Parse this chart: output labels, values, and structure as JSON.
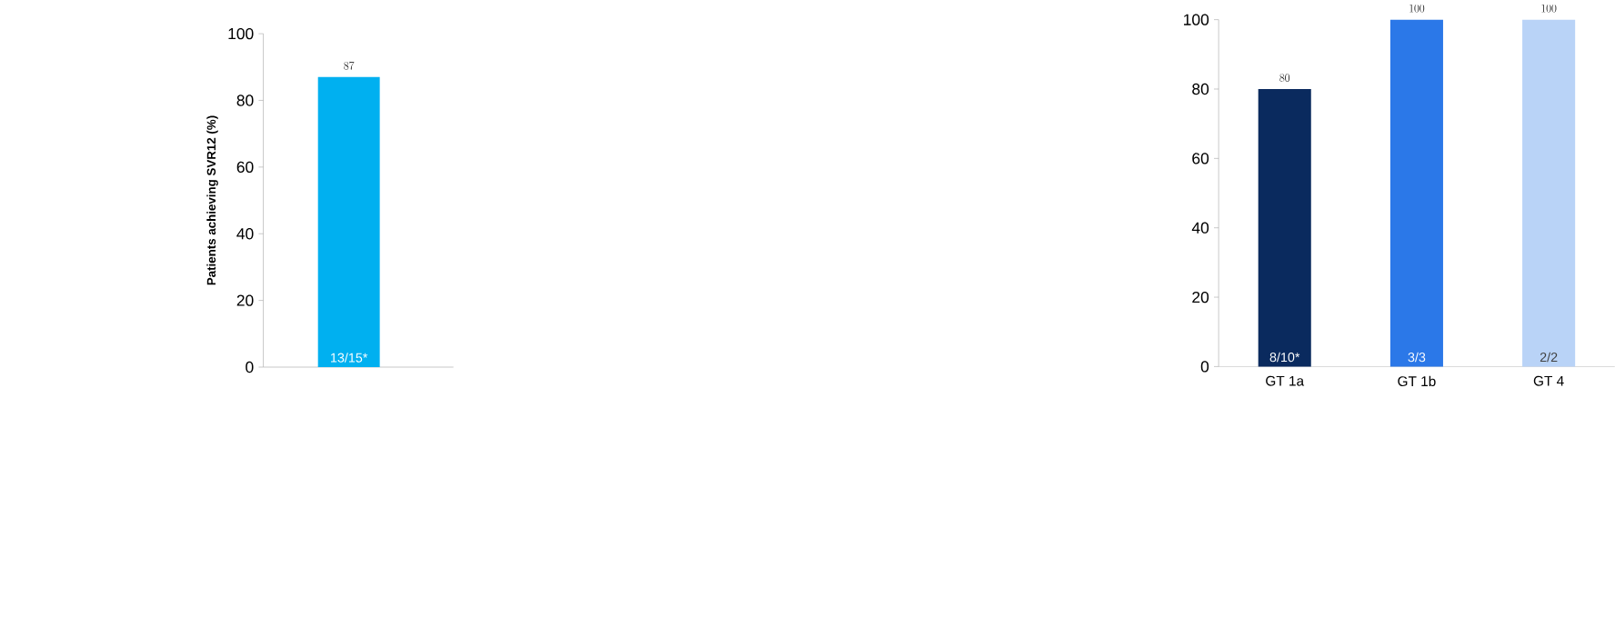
{
  "chart_data": [
    {
      "type": "bar",
      "categories": [
        null
      ],
      "values": [
        87
      ],
      "colors": [
        "#00b0f0"
      ],
      "ylabel": "Patients achieving SVR12 (%)",
      "ylim": [
        0,
        100
      ],
      "yticks": [
        0,
        20,
        40,
        60,
        80,
        100
      ],
      "data_labels": true,
      "tick_labels": "y",
      "annotations": [
        "13/15*"
      ]
    },
    {
      "type": "bar",
      "categories": [
        "GT 1a",
        "GT 1b",
        "GT 4"
      ],
      "values": [
        80,
        100,
        100
      ],
      "colors": [
        "#0a2a5e",
        "#2b78e8",
        "#b9d3f7"
      ],
      "ylim": [
        0,
        100
      ],
      "yticks": [
        0,
        20,
        40,
        60,
        80,
        100
      ],
      "data_labels": true,
      "annotations": [
        "8/10*",
        "3/3",
        "2/2"
      ]
    }
  ]
}
